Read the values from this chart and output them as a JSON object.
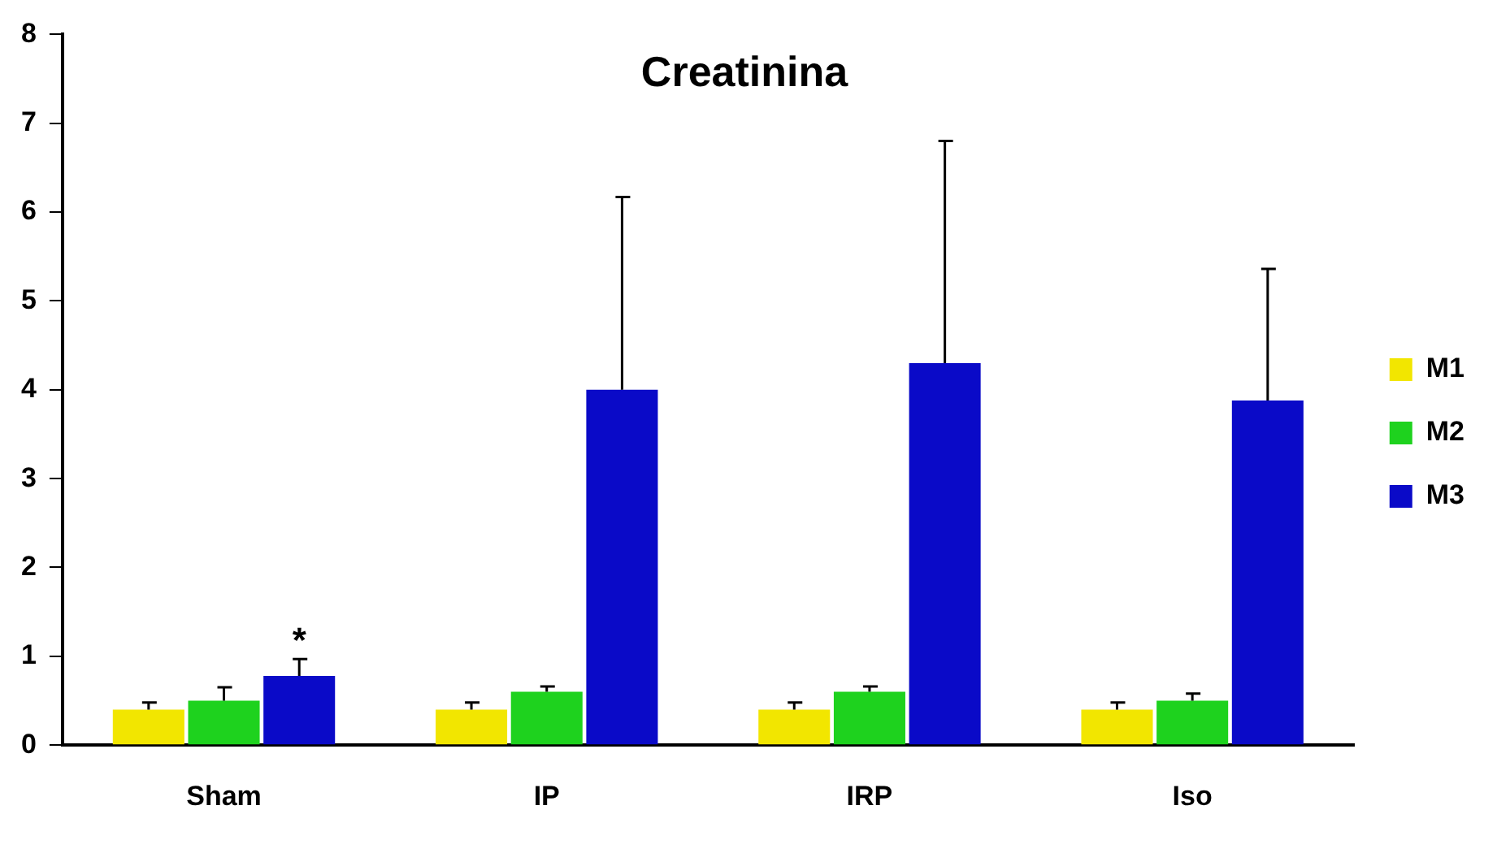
{
  "chart_data": {
    "type": "bar",
    "title": "Creatinina",
    "categories": [
      "Sham",
      "IP",
      "IRP",
      "Iso"
    ],
    "series": [
      {
        "name": "M1",
        "color": "#f2e600",
        "values": [
          0.4,
          0.4,
          0.4,
          0.4
        ],
        "errors": [
          [
            0.4,
            0.48
          ],
          [
            0.4,
            0.48
          ],
          [
            0.4,
            0.48
          ],
          [
            0.4,
            0.48
          ]
        ]
      },
      {
        "name": "M2",
        "color": "#1ed21e",
        "values": [
          0.5,
          0.6,
          0.6,
          0.5
        ],
        "errors": [
          [
            0.5,
            0.65
          ],
          [
            0.6,
            0.66
          ],
          [
            0.6,
            0.66
          ],
          [
            0.5,
            0.58
          ]
        ]
      },
      {
        "name": "M3",
        "color": "#0a0ac8",
        "values": [
          0.78,
          4.0,
          4.3,
          3.88
        ],
        "errors": [
          [
            0.78,
            0.97
          ],
          [
            4.0,
            6.17
          ],
          [
            4.3,
            6.8
          ],
          [
            3.88,
            5.36
          ]
        ]
      }
    ],
    "ylim": [
      0,
      8
    ],
    "yticks": [
      0,
      1,
      2,
      3,
      4,
      5,
      6,
      7,
      8
    ],
    "grid": false,
    "legend": "right",
    "annotations": [
      "*"
    ]
  }
}
